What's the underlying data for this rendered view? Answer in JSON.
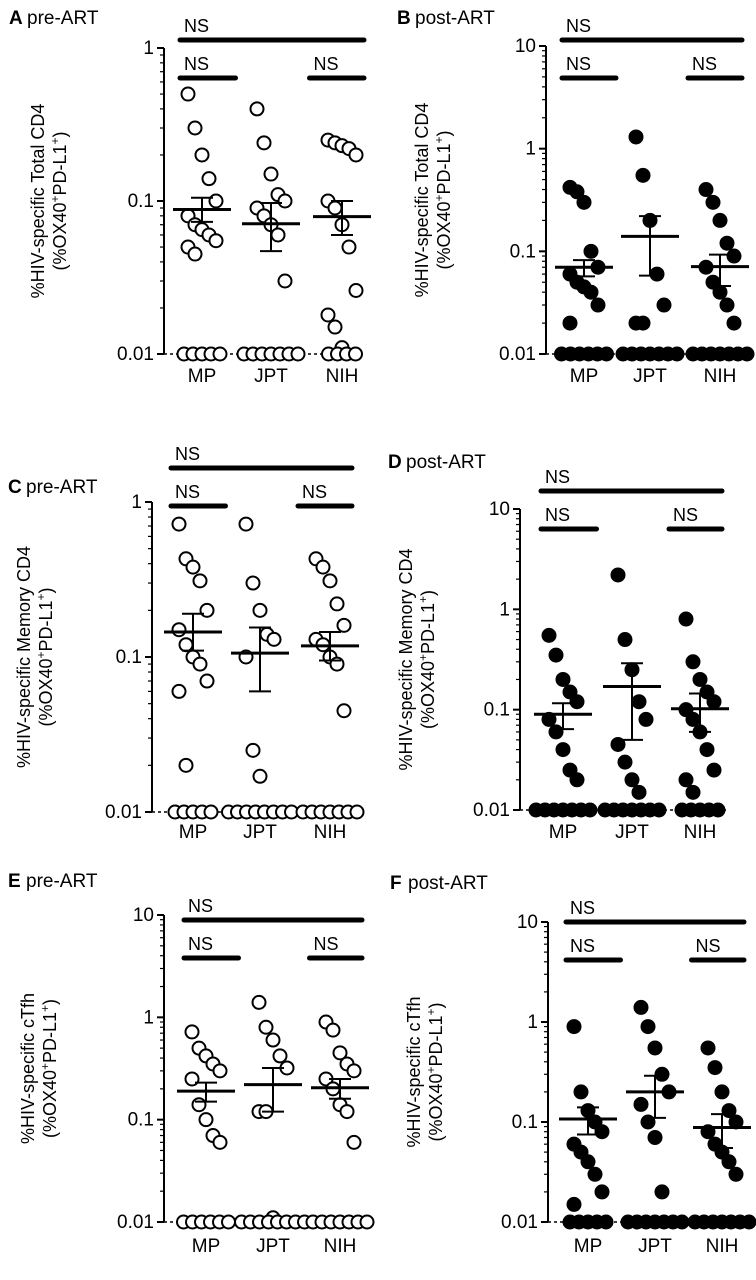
{
  "chart_data": [
    {
      "type": "scatter",
      "panel": "A",
      "title": "pre-ART",
      "ylabel_line1": "%HIV-specific Total CD4",
      "ylabel_line2": "(%OX40+PD-L1+)",
      "ylabel_parts": [
        "(%OX40",
        "+",
        "PD-L1",
        "+",
        ")"
      ],
      "yscale": "log",
      "ylim": [
        0.01,
        1
      ],
      "yticks": [
        {
          "value": 1,
          "label": "1"
        },
        {
          "value": 0.1,
          "label": "0.1"
        },
        {
          "value": 0.01,
          "label": "0.01"
        }
      ],
      "categories": [
        "MP",
        "JPT",
        "NIH"
      ],
      "marker": "open",
      "groups": [
        {
          "values": [
            0.5,
            0.3,
            0.2,
            0.14,
            0.1,
            0.08,
            0.07,
            0.065,
            0.06,
            0.055,
            0.05,
            0.045,
            0.01,
            0.01,
            0.01,
            0.01,
            0.01
          ],
          "mean": 0.088,
          "sem": [
            0.073,
            0.105
          ]
        },
        {
          "values": [
            0.4,
            0.24,
            0.15,
            0.11,
            0.1,
            0.09,
            0.08,
            0.07,
            0.06,
            0.03,
            0.01,
            0.01,
            0.01,
            0.01,
            0.01,
            0.01,
            0.01
          ],
          "mean": 0.071,
          "sem": [
            0.047,
            0.097
          ]
        },
        {
          "values": [
            0.25,
            0.24,
            0.23,
            0.22,
            0.2,
            0.1,
            0.09,
            0.07,
            0.05,
            0.026,
            0.018,
            0.015,
            0.011,
            0.01,
            0.01,
            0.01,
            0.01
          ],
          "mean": 0.079,
          "sem": [
            0.06,
            0.1
          ]
        }
      ],
      "brackets": [
        {
          "from": "MP",
          "to": "NIH",
          "label": "NS"
        },
        {
          "from": "MP",
          "to": "JPT",
          "label": "NS"
        },
        {
          "from": "JPT",
          "to": "NIH",
          "label": "NS"
        }
      ]
    },
    {
      "type": "scatter",
      "panel": "B",
      "title": "post-ART",
      "ylabel_line1": "%HIV-specific Total CD4",
      "ylabel_line2": "(%OX40+PD-L1+)",
      "ylabel_parts": [
        "(%OX40",
        "+",
        "PD-L1",
        "+",
        ")"
      ],
      "yscale": "log",
      "ylim": [
        0.01,
        10
      ],
      "yticks": [
        {
          "value": 10,
          "label": "10"
        },
        {
          "value": 1,
          "label": "1"
        },
        {
          "value": 0.1,
          "label": "0.1"
        },
        {
          "value": 0.01,
          "label": "0.01"
        }
      ],
      "categories": [
        "MP",
        "JPT",
        "NIH"
      ],
      "marker": "filled",
      "groups": [
        {
          "values": [
            0.42,
            0.38,
            0.3,
            0.1,
            0.07,
            0.06,
            0.05,
            0.045,
            0.04,
            0.03,
            0.02,
            0.01,
            0.01,
            0.01,
            0.01,
            0.01,
            0.01
          ],
          "mean": 0.07,
          "sem": [
            0.057,
            0.082
          ]
        },
        {
          "values": [
            1.3,
            0.55,
            0.2,
            0.06,
            0.03,
            0.02,
            0.02,
            0.01,
            0.01,
            0.01,
            0.01,
            0.01,
            0.01,
            0.01
          ],
          "mean": 0.14,
          "sem": [
            0.058,
            0.22
          ]
        },
        {
          "values": [
            0.4,
            0.3,
            0.2,
            0.12,
            0.09,
            0.07,
            0.05,
            0.04,
            0.03,
            0.02,
            0.01,
            0.01,
            0.01,
            0.01,
            0.01,
            0.01,
            0.01
          ],
          "mean": 0.071,
          "sem": [
            0.046,
            0.093
          ]
        }
      ],
      "brackets": [
        {
          "from": "MP",
          "to": "NIH",
          "label": "NS"
        },
        {
          "from": "MP",
          "to": "JPT",
          "label": "NS"
        },
        {
          "from": "JPT",
          "to": "NIH",
          "label": "NS"
        }
      ]
    },
    {
      "type": "scatter",
      "panel": "C",
      "title": "pre-ART",
      "ylabel_line1": "%HIV-specific Memory CD4",
      "ylabel_line2": "(%OX40+PD-L1+)",
      "ylabel_parts": [
        "(%OX40",
        "+",
        "PD-L1",
        "+",
        ")"
      ],
      "yscale": "log",
      "ylim": [
        0.01,
        1
      ],
      "yticks": [
        {
          "value": 1,
          "label": "1"
        },
        {
          "value": 0.1,
          "label": "0.1"
        },
        {
          "value": 0.01,
          "label": "0.01"
        }
      ],
      "categories": [
        "MP",
        "JPT",
        "NIH"
      ],
      "marker": "open",
      "groups": [
        {
          "values": [
            0.72,
            0.43,
            0.38,
            0.31,
            0.2,
            0.15,
            0.12,
            0.1,
            0.09,
            0.07,
            0.06,
            0.02,
            0.01,
            0.01,
            0.01,
            0.01,
            0.01
          ],
          "mean": 0.145,
          "sem": [
            0.11,
            0.19
          ]
        },
        {
          "values": [
            0.72,
            0.3,
            0.2,
            0.14,
            0.13,
            0.1,
            0.025,
            0.017,
            0.01,
            0.01,
            0.01,
            0.01,
            0.01,
            0.01,
            0.01,
            0.01
          ],
          "mean": 0.106,
          "sem": [
            0.06,
            0.155
          ]
        },
        {
          "values": [
            0.43,
            0.38,
            0.31,
            0.22,
            0.16,
            0.13,
            0.12,
            0.1,
            0.09,
            0.045,
            0.01,
            0.01,
            0.01,
            0.01,
            0.01,
            0.01,
            0.01
          ],
          "mean": 0.118,
          "sem": [
            0.095,
            0.145
          ]
        }
      ],
      "brackets": [
        {
          "from": "MP",
          "to": "NIH",
          "label": "NS"
        },
        {
          "from": "MP",
          "to": "JPT",
          "label": "NS"
        },
        {
          "from": "JPT",
          "to": "NIH",
          "label": "NS"
        }
      ]
    },
    {
      "type": "scatter",
      "panel": "D",
      "title": "post-ART",
      "ylabel_line1": "%HIV-specific Memory CD4",
      "ylabel_line2": "(%OX40+PD-L1+)",
      "ylabel_parts": [
        "(%OX40",
        "+",
        "PD-L1",
        "+",
        ")"
      ],
      "yscale": "log",
      "ylim": [
        0.01,
        10
      ],
      "yticks": [
        {
          "value": 10,
          "label": "10"
        },
        {
          "value": 1,
          "label": "1"
        },
        {
          "value": 0.1,
          "label": "0.1"
        },
        {
          "value": 0.01,
          "label": "0.01"
        }
      ],
      "categories": [
        "MP",
        "JPT",
        "NIH"
      ],
      "marker": "filled",
      "groups": [
        {
          "values": [
            0.55,
            0.35,
            0.2,
            0.15,
            0.12,
            0.08,
            0.06,
            0.04,
            0.025,
            0.02,
            0.01,
            0.01,
            0.01,
            0.01,
            0.01,
            0.01,
            0.01
          ],
          "mean": 0.09,
          "sem": [
            0.064,
            0.116
          ]
        },
        {
          "values": [
            2.2,
            0.5,
            0.25,
            0.12,
            0.08,
            0.045,
            0.03,
            0.02,
            0.015,
            0.01,
            0.01,
            0.01,
            0.01,
            0.01,
            0.01,
            0.01
          ],
          "mean": 0.17,
          "sem": [
            0.05,
            0.29
          ]
        },
        {
          "values": [
            0.8,
            0.3,
            0.2,
            0.15,
            0.12,
            0.1,
            0.08,
            0.06,
            0.04,
            0.025,
            0.02,
            0.015,
            0.01,
            0.01,
            0.01,
            0.01,
            0.01
          ],
          "mean": 0.102,
          "sem": [
            0.06,
            0.145
          ]
        }
      ],
      "brackets": [
        {
          "from": "MP",
          "to": "NIH",
          "label": "NS"
        },
        {
          "from": "MP",
          "to": "JPT",
          "label": "NS"
        },
        {
          "from": "JPT",
          "to": "NIH",
          "label": "NS"
        }
      ]
    },
    {
      "type": "scatter",
      "panel": "E",
      "title": "pre-ART",
      "ylabel_line1": "%HIV-specific cTfh",
      "ylabel_line2": "(%OX40+PD-L1+)",
      "ylabel_parts": [
        "(%OX40",
        "+",
        "PD-L1",
        "+",
        ")"
      ],
      "yscale": "log",
      "ylim": [
        0.01,
        10
      ],
      "yticks": [
        {
          "value": 10,
          "label": "10"
        },
        {
          "value": 1,
          "label": "1"
        },
        {
          "value": 0.1,
          "label": "0.1"
        },
        {
          "value": 0.01,
          "label": "0.01"
        }
      ],
      "categories": [
        "MP",
        "JPT",
        "NIH"
      ],
      "marker": "open",
      "groups": [
        {
          "values": [
            0.72,
            0.5,
            0.42,
            0.35,
            0.3,
            0.25,
            0.14,
            0.1,
            0.07,
            0.06,
            0.01,
            0.01,
            0.01,
            0.01,
            0.01,
            0.01
          ],
          "mean": 0.19,
          "sem": [
            0.15,
            0.23
          ]
        },
        {
          "values": [
            1.4,
            0.8,
            0.6,
            0.42,
            0.32,
            0.12,
            0.12,
            0.011,
            0.01,
            0.01,
            0.01,
            0.01,
            0.01,
            0.01,
            0.01,
            0.01
          ],
          "mean": 0.22,
          "sem": [
            0.12,
            0.32
          ]
        },
        {
          "values": [
            0.9,
            0.75,
            0.45,
            0.35,
            0.3,
            0.25,
            0.2,
            0.14,
            0.12,
            0.06,
            0.01,
            0.01,
            0.01,
            0.01,
            0.01,
            0.01,
            0.01
          ],
          "mean": 0.205,
          "sem": [
            0.16,
            0.25
          ]
        }
      ],
      "brackets": [
        {
          "from": "MP",
          "to": "NIH",
          "label": "NS"
        },
        {
          "from": "MP",
          "to": "JPT",
          "label": "NS"
        },
        {
          "from": "JPT",
          "to": "NIH",
          "label": "NS"
        }
      ]
    },
    {
      "type": "scatter",
      "panel": "F",
      "title": "post-ART",
      "ylabel_line1": "%HIV-specific cTfh",
      "ylabel_line2": "(%OX40+PD-L1+)",
      "ylabel_parts": [
        "(%OX40",
        "+",
        "PD-L1",
        "+",
        ")"
      ],
      "yscale": "log",
      "ylim": [
        0.01,
        10
      ],
      "yticks": [
        {
          "value": 10,
          "label": "10"
        },
        {
          "value": 1,
          "label": "1"
        },
        {
          "value": 0.1,
          "label": "0.1"
        },
        {
          "value": 0.01,
          "label": "0.01"
        }
      ],
      "categories": [
        "MP",
        "JPT",
        "NIH"
      ],
      "marker": "filled",
      "groups": [
        {
          "values": [
            0.9,
            0.2,
            0.13,
            0.1,
            0.08,
            0.06,
            0.05,
            0.04,
            0.03,
            0.02,
            0.015,
            0.01,
            0.01,
            0.01,
            0.01,
            0.01
          ],
          "mean": 0.107,
          "sem": [
            0.075,
            0.14
          ]
        },
        {
          "values": [
            1.4,
            0.9,
            0.55,
            0.3,
            0.2,
            0.15,
            0.1,
            0.07,
            0.02,
            0.01,
            0.01,
            0.01,
            0.01,
            0.01,
            0.01,
            0.01
          ],
          "mean": 0.2,
          "sem": [
            0.11,
            0.29
          ]
        },
        {
          "values": [
            0.55,
            0.35,
            0.2,
            0.13,
            0.1,
            0.08,
            0.06,
            0.05,
            0.04,
            0.03,
            0.01,
            0.01,
            0.01,
            0.01,
            0.01,
            0.01,
            0.01
          ],
          "mean": 0.088,
          "sem": [
            0.055,
            0.12
          ]
        }
      ],
      "brackets": [
        {
          "from": "MP",
          "to": "NIH",
          "label": "NS"
        },
        {
          "from": "MP",
          "to": "JPT",
          "label": "NS"
        },
        {
          "from": "JPT",
          "to": "NIH",
          "label": "NS"
        }
      ]
    }
  ]
}
